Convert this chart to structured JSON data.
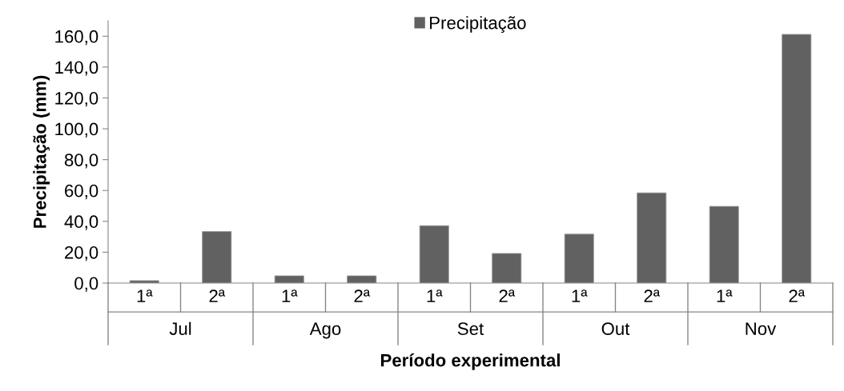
{
  "chart_data": {
    "type": "bar",
    "xlabel": "Período experimental",
    "ylabel": "Precipitação (mm)",
    "categories": [
      "1ª",
      "2ª",
      "1ª",
      "2ª",
      "1ª",
      "2ª",
      "1ª",
      "2ª",
      "1ª",
      "2ª"
    ],
    "annotations": [
      "Jul",
      "Ago",
      "Set",
      "Out",
      "Nov"
    ],
    "series": [
      {
        "name": "Precipitação",
        "color": "#616161",
        "values": [
          1.6,
          33.4,
          4.7,
          4.7,
          37.2,
          19.2,
          31.7,
          58.5,
          49.7,
          161.2
        ]
      }
    ],
    "ylim": [
      0,
      170
    ],
    "yticks": [
      {
        "value": 0,
        "label": "0,0"
      },
      {
        "value": 20,
        "label": "20,0"
      },
      {
        "value": 40,
        "label": "40,0"
      },
      {
        "value": 60,
        "label": "60,0"
      },
      {
        "value": 80,
        "label": "80,0"
      },
      {
        "value": 100,
        "label": "100,0"
      },
      {
        "value": 120,
        "label": "120,0"
      },
      {
        "value": 140,
        "label": "140,0"
      },
      {
        "value": 160,
        "label": "160,0"
      }
    ],
    "grid": false,
    "legend": "top"
  }
}
